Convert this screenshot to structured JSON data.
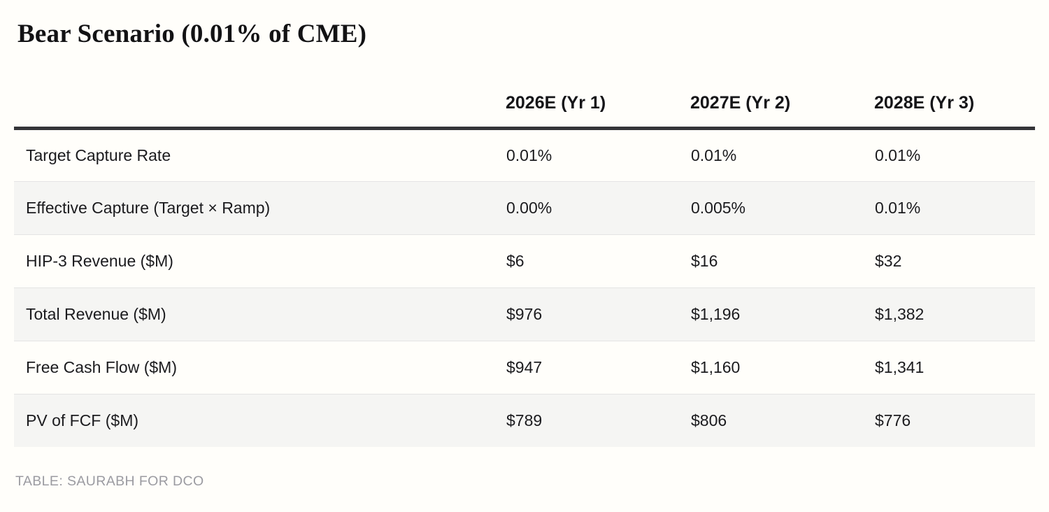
{
  "chart_data": {
    "type": "table",
    "title": "Bear Scenario (0.01% of CME)",
    "col_headers": [
      "2026E (Yr 1)",
      "2027E (Yr 2)",
      "2028E (Yr 3)"
    ],
    "rows": [
      {
        "label": "Target Capture Rate",
        "values": [
          "0.01%",
          "0.01%",
          "0.01%"
        ]
      },
      {
        "label": "Effective Capture (Target × Ramp)",
        "values": [
          "0.00%",
          "0.005%",
          "0.01%"
        ]
      },
      {
        "label": "HIP-3 Revenue ($M)",
        "values": [
          "$6",
          "$16",
          "$32"
        ]
      },
      {
        "label": "Total Revenue ($M)",
        "values": [
          "$976",
          "$1,196",
          "$1,382"
        ]
      },
      {
        "label": "Free Cash Flow ($M)",
        "values": [
          "$947",
          "$1,160",
          "$1,341"
        ]
      },
      {
        "label": "PV of FCF ($M)",
        "values": [
          "$789",
          "$806",
          "$776"
        ]
      }
    ],
    "source_note": "TABLE: SAURABH FOR DCO",
    "layout": {
      "legend": "none",
      "grid": "horizontal-row-separators",
      "alternating_row_shading": true
    }
  },
  "colors": {
    "page_background": "#fffefa",
    "alt_row_background": "#f5f5f3",
    "row_separator": "#e4e4e4",
    "header_rule": "#343438",
    "text": "#1b1b1e",
    "credit_text": "#9b9ba1"
  }
}
